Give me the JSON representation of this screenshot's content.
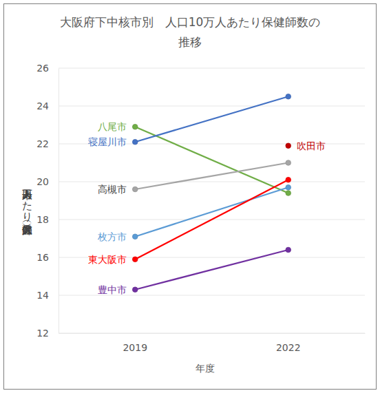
{
  "chart_data": {
    "type": "line",
    "title": [
      "大阪府下中核市別　人口10万人あたり保健師数の",
      "推移"
    ],
    "x_label": "年度",
    "y_label": "人口十万人あたり保健師数（人）",
    "categories": [
      "2019",
      "2022"
    ],
    "ylim": [
      12,
      26
    ],
    "yticks": [
      12,
      14,
      16,
      18,
      20,
      22,
      24,
      26
    ],
    "grid": true,
    "marker": "circle",
    "series": [
      {
        "name": "八尾市",
        "color": "#70ad47",
        "values": [
          22.9,
          19.4
        ]
      },
      {
        "name": "寝屋川市",
        "color": "#4472c4",
        "values": [
          22.1,
          24.5
        ]
      },
      {
        "name": "高槻市",
        "color": "#a5a5a5",
        "values": [
          19.6,
          21.0
        ]
      },
      {
        "name": "枚方市",
        "color": "#5b9bd5",
        "values": [
          17.1,
          19.7
        ]
      },
      {
        "name": "東大阪市",
        "color": "#ff0000",
        "values": [
          15.9,
          20.1
        ]
      },
      {
        "name": "豊中市",
        "color": "#7030a0",
        "values": [
          14.3,
          16.4
        ]
      },
      {
        "name": "吹田市",
        "color": "#c00000",
        "values": [
          null,
          21.9
        ]
      }
    ]
  }
}
